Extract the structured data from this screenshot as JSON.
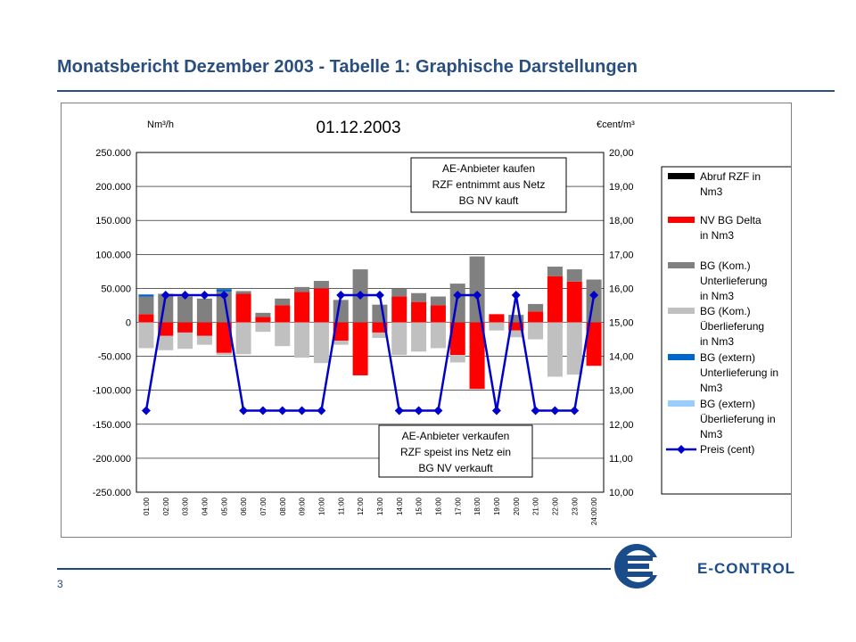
{
  "slide": {
    "title": "Monatsbericht Dezember 2003 - Tabelle 1: Graphische Darstellungen",
    "page_number": "3",
    "logo_text": "E-CONTROL"
  },
  "colors": {
    "title": "#2a4f7f",
    "abruf": "#000000",
    "nv_delta": "#ff0000",
    "bg_kom_unter": "#808080",
    "bg_kom_ueber": "#c0c0c0",
    "bg_ext_unter": "#0066cc",
    "bg_ext_ueber": "#99ccff",
    "preis": "#0000cc"
  },
  "chart_data": {
    "type": "bar",
    "title": "01.12.2003",
    "y_left_label": "Nm³/h",
    "y_right_label": "€cent/m³",
    "y_left_ticks": [
      "250.000",
      "200.000",
      "150.000",
      "100.000",
      "50.000",
      "0",
      "-50.000",
      "-100.000",
      "-150.000",
      "-200.000",
      "-250.000"
    ],
    "y_right_ticks": [
      "20,00",
      "19,00",
      "18,00",
      "17,00",
      "16,00",
      "15,00",
      "14,00",
      "13,00",
      "12,00",
      "11,00",
      "10,00"
    ],
    "ylim_left": [
      -250000,
      250000
    ],
    "ylim_right": [
      10,
      20
    ],
    "grid": true,
    "legend_position": "right",
    "categories": [
      "01:00",
      "02:00",
      "03:00",
      "04:00",
      "05:00",
      "06:00",
      "07:00",
      "08:00",
      "09:00",
      "10:00",
      "11:00",
      "12:00",
      "13:00",
      "14:00",
      "15:00",
      "16:00",
      "17:00",
      "18:00",
      "19:00",
      "20:00",
      "21:00",
      "22:00",
      "23:00",
      "24:00:00"
    ],
    "series": [
      {
        "name": "Abruf RZF in Nm3",
        "kind": "bar",
        "color_key": "abruf",
        "values": [
          0,
          0,
          0,
          0,
          0,
          0,
          0,
          0,
          0,
          0,
          0,
          0,
          0,
          0,
          0,
          0,
          0,
          0,
          0,
          0,
          0,
          0,
          0,
          0
        ]
      },
      {
        "name": "NV BG Delta in Nm3",
        "kind": "delta",
        "color_key": "nv_delta",
        "values": [
          12000,
          -20000,
          -15000,
          -20000,
          -45000,
          42000,
          8000,
          25000,
          45000,
          50000,
          -27000,
          -78000,
          -15000,
          38000,
          30000,
          25000,
          -48000,
          -98000,
          12000,
          -12000,
          16000,
          68000,
          60000,
          -64000
        ]
      },
      {
        "name": "BG (Kom.) Unterlieferung in Nm3",
        "kind": "bar",
        "color_key": "bg_kom_unter",
        "values": [
          26000,
          42000,
          38000,
          35000,
          45000,
          4000,
          6000,
          10000,
          7000,
          11000,
          33000,
          78000,
          26000,
          12000,
          13000,
          13000,
          57000,
          97000,
          0,
          11000,
          11000,
          14000,
          18000,
          63000
        ]
      },
      {
        "name": "BG (Kom.) Überlieferung in Nm3",
        "kind": "bar",
        "color_key": "bg_kom_ueber",
        "values": [
          -38000,
          -21000,
          -24000,
          -13000,
          -3000,
          -47000,
          -14000,
          -35000,
          -52000,
          -60000,
          -6000,
          0,
          -8000,
          -48000,
          -43000,
          -38000,
          -11000,
          0,
          -12000,
          -10000,
          -25000,
          -80000,
          -77000,
          0
        ]
      },
      {
        "name": "BG (extern) Unterlieferung in Nm3",
        "kind": "bar",
        "color_key": "bg_ext_unter",
        "values": [
          3000,
          0,
          0,
          0,
          4000,
          0,
          0,
          0,
          0,
          0,
          0,
          0,
          0,
          0,
          0,
          0,
          0,
          0,
          0,
          0,
          0,
          0,
          0,
          0
        ]
      },
      {
        "name": "BG (extern) Überlieferung in Nm3",
        "kind": "bar",
        "color_key": "bg_ext_ueber",
        "values": [
          0,
          0,
          0,
          0,
          0,
          0,
          0,
          0,
          0,
          0,
          0,
          0,
          0,
          0,
          0,
          0,
          0,
          0,
          0,
          0,
          0,
          0,
          0,
          0
        ]
      },
      {
        "name": "Preis (cent)",
        "kind": "line",
        "axis": "right",
        "color_key": "preis",
        "values": [
          12.4,
          15.8,
          15.8,
          15.8,
          15.8,
          12.4,
          12.4,
          12.4,
          12.4,
          12.4,
          15.8,
          15.8,
          15.8,
          12.4,
          12.4,
          12.4,
          15.8,
          15.8,
          12.4,
          15.8,
          12.4,
          12.4,
          12.4,
          15.8
        ]
      }
    ],
    "annotations": [
      {
        "lines": [
          "AE-Anbieter kaufen",
          "RZF entnimmt aus Netz",
          "BG NV kauft"
        ],
        "anchor": "top"
      },
      {
        "lines": [
          "AE-Anbieter verkaufen",
          "RZF speist ins Netz ein",
          "BG NV verkauft"
        ],
        "anchor": "bottom"
      }
    ],
    "legend": [
      {
        "lines": [
          "Abruf RZF in",
          "Nm3"
        ],
        "color_key": "abruf",
        "marker": "swatch"
      },
      {
        "lines": [
          "NV BG Delta",
          "in Nm3"
        ],
        "color_key": "nv_delta",
        "marker": "swatch"
      },
      {
        "lines": [
          "BG (Kom.)",
          "Unterlieferung",
          "in Nm3"
        ],
        "color_key": "bg_kom_unter",
        "marker": "swatch"
      },
      {
        "lines": [
          "BG (Kom.)",
          "Überlieferung",
          "in Nm3"
        ],
        "color_key": "bg_kom_ueber",
        "marker": "swatch"
      },
      {
        "lines": [
          "BG (extern)",
          "Unterlieferung in",
          "Nm3"
        ],
        "color_key": "bg_ext_unter",
        "marker": "swatch"
      },
      {
        "lines": [
          "BG (extern)",
          "Überlieferung in",
          "Nm3"
        ],
        "color_key": "bg_ext_ueber",
        "marker": "swatch"
      },
      {
        "lines": [
          "Preis (cent)"
        ],
        "color_key": "preis",
        "marker": "line"
      }
    ]
  }
}
